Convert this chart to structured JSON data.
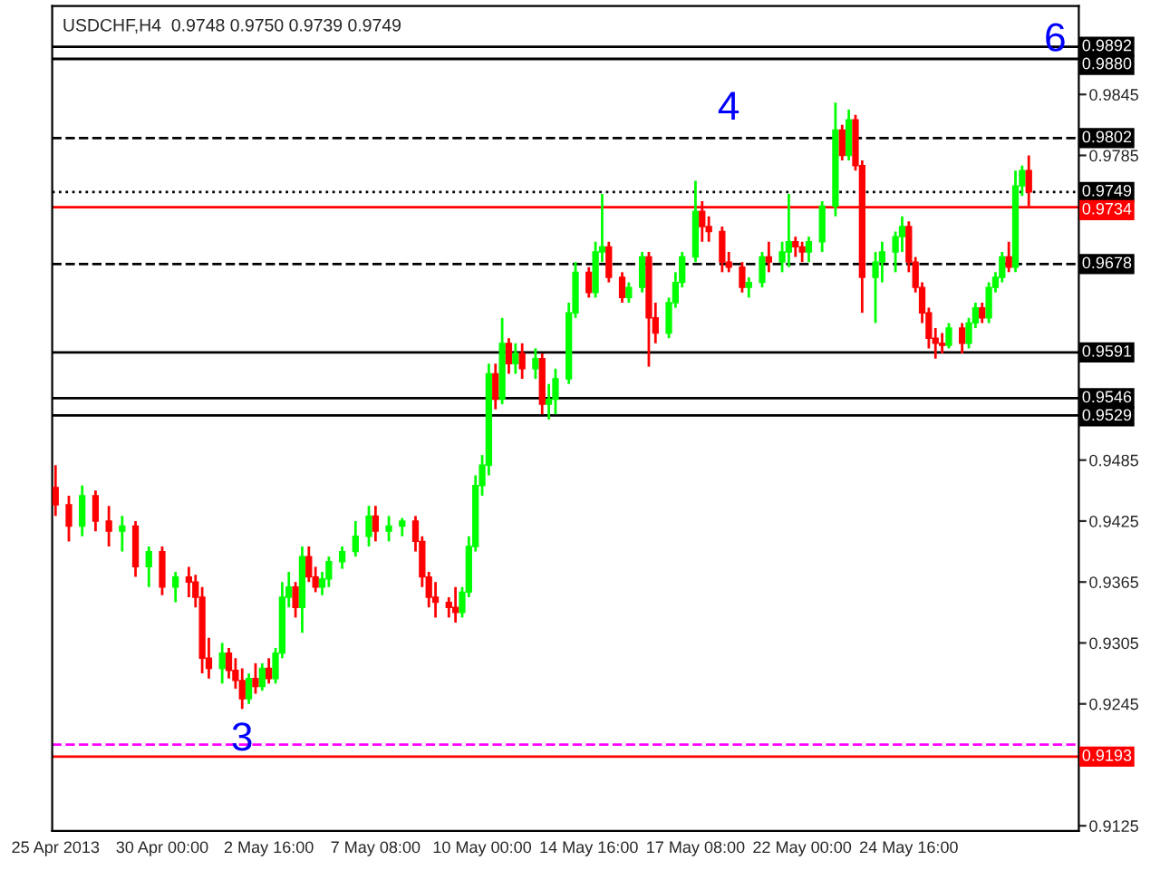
{
  "chart_data": {
    "type": "candlestick",
    "title": "USDCHF,H4  0.9748 0.9750 0.9739 0.9749",
    "categories": [
      "25 Apr 2013",
      null,
      null,
      null,
      null,
      null,
      null,
      null,
      null,
      null,
      null,
      null,
      null,
      null,
      null,
      null,
      "30 Apr 00:00",
      null,
      null,
      null,
      null,
      null,
      null,
      null,
      null,
      null,
      null,
      null,
      null,
      null,
      null,
      null,
      "2 May 16:00",
      null,
      null,
      null,
      null,
      null,
      null,
      null,
      null,
      null,
      null,
      null,
      null,
      null,
      null,
      null,
      "7 May 08:00",
      null,
      null,
      null,
      null,
      null,
      null,
      null,
      null,
      null,
      null,
      null,
      null,
      null,
      null,
      null,
      "10 May 00:00",
      null,
      null,
      null,
      null,
      null,
      null,
      null,
      null,
      null,
      null,
      null,
      null,
      null,
      null,
      null,
      "14 May 16:00",
      null,
      null,
      null,
      null,
      null,
      null,
      null,
      null,
      null,
      null,
      null,
      null,
      null,
      null,
      null,
      "17 May 08:00",
      null,
      null,
      null,
      null,
      null,
      null,
      null,
      null,
      null,
      null,
      null,
      null,
      null,
      null,
      null,
      "22 May 00:00",
      null,
      null,
      null,
      null,
      null,
      null,
      null,
      null,
      null,
      null,
      null,
      null,
      null,
      null,
      null,
      "24 May 16:00",
      null,
      null,
      null,
      null,
      null,
      null,
      null,
      null,
      null,
      null,
      null,
      null,
      null,
      null,
      null,
      null,
      null,
      null
    ],
    "ohlc": [
      [
        0.9458,
        0.948,
        0.943,
        0.9441
      ],
      null,
      [
        0.9441,
        0.945,
        0.9405,
        0.942
      ],
      null,
      [
        0.942,
        0.946,
        0.941,
        0.945
      ],
      null,
      [
        0.945,
        0.9455,
        0.9415,
        0.9425
      ],
      null,
      [
        0.9425,
        0.944,
        0.94,
        0.9415
      ],
      null,
      [
        0.9415,
        0.943,
        0.9395,
        0.942
      ],
      null,
      [
        0.942,
        0.9425,
        0.937,
        0.938
      ],
      null,
      [
        0.938,
        0.94,
        0.936,
        0.9395
      ],
      null,
      [
        0.9395,
        0.94,
        0.9352,
        0.936
      ],
      null,
      [
        0.936,
        0.9375,
        0.9345,
        0.937
      ],
      null,
      [
        0.937,
        0.938,
        0.935,
        0.9365
      ],
      [
        0.9365,
        0.9372,
        0.934,
        0.935
      ],
      [
        0.935,
        0.936,
        0.9275,
        0.929
      ],
      [
        0.929,
        0.931,
        0.927,
        0.928
      ],
      null,
      [
        0.928,
        0.9305,
        0.9265,
        0.9295
      ],
      [
        0.9295,
        0.93,
        0.927,
        0.9278
      ],
      [
        0.9278,
        0.929,
        0.926,
        0.9268
      ],
      [
        0.9268,
        0.928,
        0.924,
        0.925
      ],
      [
        0.925,
        0.9275,
        0.9245,
        0.927
      ],
      [
        0.927,
        0.9285,
        0.9255,
        0.9262
      ],
      [
        0.9262,
        0.9285,
        0.9258,
        0.928
      ],
      [
        0.928,
        0.929,
        0.9265,
        0.927
      ],
      [
        0.927,
        0.93,
        0.9265,
        0.9295
      ],
      [
        0.9295,
        0.9365,
        0.929,
        0.935
      ],
      [
        0.935,
        0.9375,
        0.934,
        0.936
      ],
      [
        0.936,
        0.9365,
        0.933,
        0.934
      ],
      [
        0.934,
        0.94,
        0.9315,
        0.939
      ],
      [
        0.939,
        0.94,
        0.9365,
        0.937
      ],
      [
        0.937,
        0.938,
        0.9355,
        0.936
      ],
      [
        0.936,
        0.9375,
        0.9352,
        0.9368
      ],
      [
        0.9368,
        0.939,
        0.936,
        0.9385
      ],
      null,
      [
        0.9385,
        0.94,
        0.9378,
        0.9395
      ],
      null,
      [
        0.9395,
        0.9425,
        0.939,
        0.941
      ],
      null,
      [
        0.941,
        0.944,
        0.94,
        0.943
      ],
      [
        0.943,
        0.944,
        0.9405,
        0.9415
      ],
      null,
      [
        0.9415,
        0.943,
        0.9405,
        0.942
      ],
      null,
      [
        0.942,
        0.9428,
        0.941,
        0.9425
      ],
      null,
      [
        0.9425,
        0.943,
        0.9395,
        0.9405
      ],
      [
        0.9405,
        0.941,
        0.936,
        0.937
      ],
      [
        0.937,
        0.9375,
        0.934,
        0.935
      ],
      [
        0.935,
        0.9365,
        0.933,
        0.9345
      ],
      null,
      [
        0.9345,
        0.935,
        0.933,
        0.934
      ],
      [
        0.934,
        0.936,
        0.9325,
        0.9335
      ],
      [
        0.9335,
        0.936,
        0.933,
        0.9355
      ],
      [
        0.9355,
        0.941,
        0.935,
        0.94
      ],
      [
        0.94,
        0.947,
        0.9395,
        0.946
      ],
      [
        0.946,
        0.949,
        0.945,
        0.948
      ],
      [
        0.948,
        0.958,
        0.947,
        0.957
      ],
      [
        0.957,
        0.958,
        0.9535,
        0.9545
      ],
      [
        0.9545,
        0.9625,
        0.954,
        0.96
      ],
      [
        0.96,
        0.9605,
        0.957,
        0.958
      ],
      [
        0.958,
        0.96,
        0.957,
        0.959
      ],
      [
        0.959,
        0.96,
        0.9565,
        0.9575
      ],
      null,
      [
        0.9575,
        0.9595,
        0.9565,
        0.9585
      ],
      [
        0.9585,
        0.959,
        0.953,
        0.954
      ],
      [
        0.954,
        0.956,
        0.9525,
        0.9545
      ],
      [
        0.9545,
        0.9575,
        0.953,
        0.9565
      ],
      null,
      [
        0.9565,
        0.964,
        0.956,
        0.963
      ],
      [
        0.963,
        0.968,
        0.9625,
        0.967
      ],
      null,
      [
        0.967,
        0.9675,
        0.9645,
        0.965
      ],
      [
        0.965,
        0.97,
        0.9645,
        0.969
      ],
      [
        0.969,
        0.9747,
        0.968,
        0.9695
      ],
      [
        0.9695,
        0.97,
        0.966,
        0.9665
      ],
      null,
      [
        0.9665,
        0.967,
        0.964,
        0.9645
      ],
      [
        0.9645,
        0.966,
        0.964,
        0.9655
      ],
      null,
      [
        0.9655,
        0.969,
        0.965,
        0.9685
      ],
      [
        0.9685,
        0.969,
        0.9577,
        0.9625
      ],
      [
        0.9625,
        0.964,
        0.96,
        0.961
      ],
      null,
      [
        0.961,
        0.9645,
        0.9605,
        0.964
      ],
      [
        0.964,
        0.967,
        0.9635,
        0.966
      ],
      [
        0.966,
        0.969,
        0.9655,
        0.9685
      ],
      null,
      [
        0.9685,
        0.976,
        0.968,
        0.973
      ],
      [
        0.973,
        0.974,
        0.97,
        0.9715
      ],
      [
        0.9715,
        0.9725,
        0.97,
        0.971
      ],
      null,
      [
        0.971,
        0.9715,
        0.967,
        0.968
      ],
      [
        0.968,
        0.969,
        0.967,
        0.9675
      ],
      null,
      [
        0.9675,
        0.968,
        0.965,
        0.9655
      ],
      [
        0.9655,
        0.9665,
        0.9645,
        0.966
      ],
      null,
      [
        0.966,
        0.969,
        0.9655,
        0.9685
      ],
      [
        0.9685,
        0.97,
        0.967,
        0.968
      ],
      null,
      [
        0.968,
        0.97,
        0.967,
        0.969
      ],
      [
        0.969,
        0.9747,
        0.9675,
        0.97
      ],
      [
        0.97,
        0.9705,
        0.9685,
        0.9695
      ],
      [
        0.9695,
        0.97,
        0.968,
        0.969
      ],
      [
        0.969,
        0.9705,
        0.968,
        0.97
      ],
      null,
      [
        0.97,
        0.974,
        0.969,
        0.9735
      ],
      null,
      [
        0.9735,
        0.9837,
        0.9725,
        0.981
      ],
      [
        0.981,
        0.9815,
        0.978,
        0.9785
      ],
      [
        0.9785,
        0.983,
        0.978,
        0.982
      ],
      [
        0.982,
        0.9825,
        0.977,
        0.9775
      ],
      [
        0.9775,
        0.978,
        0.963,
        0.9665
      ],
      null,
      [
        0.9665,
        0.969,
        0.962,
        0.968
      ],
      [
        0.968,
        0.97,
        0.966,
        0.969
      ],
      null,
      [
        0.969,
        0.971,
        0.967,
        0.9705
      ],
      [
        0.9705,
        0.9725,
        0.969,
        0.9715
      ],
      [
        0.9715,
        0.972,
        0.967,
        0.968
      ],
      [
        0.968,
        0.9685,
        0.965,
        0.9655
      ],
      [
        0.9655,
        0.966,
        0.962,
        0.963
      ],
      [
        0.963,
        0.9635,
        0.9595,
        0.9605
      ],
      [
        0.9605,
        0.9615,
        0.9585,
        0.96
      ],
      [
        0.96,
        0.961,
        0.959,
        0.9598
      ],
      [
        0.9598,
        0.962,
        0.9595,
        0.9615
      ],
      null,
      [
        0.9615,
        0.962,
        0.959,
        0.96
      ],
      [
        0.96,
        0.9625,
        0.9595,
        0.962
      ],
      [
        0.962,
        0.964,
        0.9615,
        0.9635
      ],
      [
        0.9635,
        0.964,
        0.962,
        0.9625
      ],
      [
        0.9625,
        0.966,
        0.962,
        0.9655
      ],
      [
        0.9655,
        0.967,
        0.965,
        0.9665
      ],
      [
        0.9665,
        0.969,
        0.966,
        0.9685
      ],
      [
        0.9685,
        0.97,
        0.967,
        0.9675
      ],
      [
        0.9675,
        0.977,
        0.967,
        0.9755
      ],
      [
        0.9755,
        0.9775,
        0.9745,
        0.977
      ],
      [
        0.977,
        0.9785,
        0.9735,
        0.9749
      ]
    ],
    "colors": [
      "#ff0000",
      null,
      "#ff0000",
      null,
      "#00ff00",
      null,
      "#ff0000",
      null,
      "#ff0000",
      null,
      "#00ff00",
      null,
      "#ff0000",
      null,
      "#00ff00",
      null,
      "#ff0000",
      null,
      "#00ff00",
      null,
      "#ff0000",
      "#ff0000",
      "#ff0000",
      "#ff0000",
      null,
      "#00ff00",
      "#ff0000",
      "#ff0000",
      "#ff0000",
      "#00ff00",
      "#ff0000",
      "#00ff00",
      "#ff0000",
      "#00ff00",
      "#00ff00",
      "#00ff00",
      "#ff0000",
      "#00ff00",
      "#ff0000",
      "#ff0000",
      "#00ff00",
      "#00ff00",
      null,
      "#00ff00",
      null,
      "#00ff00",
      null,
      "#00ff00",
      "#ff0000",
      null,
      "#00ff00",
      null,
      "#00ff00",
      null,
      "#ff0000",
      "#ff0000",
      "#ff0000",
      "#ff0000",
      null,
      "#ff0000",
      "#ff0000",
      "#00ff00",
      "#00ff00",
      "#00ff00",
      "#00ff00",
      "#00ff00",
      "#ff0000",
      "#00ff00",
      "#ff0000",
      "#00ff00",
      "#ff0000",
      null,
      "#00ff00",
      "#ff0000",
      "#00ff00",
      "#00ff00",
      null,
      "#00ff00",
      "#00ff00",
      null,
      "#ff0000",
      "#00ff00",
      "#00ff00",
      "#ff0000",
      null,
      "#ff0000",
      "#00ff00",
      null,
      "#00ff00",
      "#ff0000",
      "#ff0000",
      null,
      "#00ff00",
      "#00ff00",
      "#00ff00",
      null,
      "#00ff00",
      "#ff0000",
      "#ff0000",
      null,
      "#ff0000",
      "#ff0000",
      null,
      "#ff0000",
      "#00ff00",
      null,
      "#00ff00",
      "#ff0000",
      null,
      "#00ff00",
      "#00ff00",
      "#ff0000",
      "#ff0000",
      "#00ff00",
      null,
      "#00ff00",
      null,
      "#00ff00",
      "#ff0000",
      "#00ff00",
      "#ff0000",
      "#ff0000",
      null,
      "#00ff00",
      "#00ff00",
      null,
      "#00ff00",
      "#00ff00",
      "#ff0000",
      "#ff0000",
      "#ff0000",
      "#ff0000",
      "#ff0000",
      "#ff0000",
      "#00ff00",
      null,
      "#ff0000",
      "#00ff00",
      "#00ff00",
      "#ff0000",
      "#00ff00",
      "#00ff00",
      "#00ff00",
      "#ff0000",
      "#00ff00",
      "#00ff00",
      "#ff0000"
    ],
    "ref_lines": [
      {
        "axis": "y",
        "value": 0.9892,
        "label": "0.9892",
        "color": "#000000"
      },
      {
        "axis": "y",
        "value": 0.988,
        "label": "0.9880",
        "color": "#000000"
      },
      {
        "axis": "y",
        "value": 0.9802,
        "label": "0.9802",
        "color": "#000000",
        "line_style": "dashed"
      },
      {
        "axis": "y",
        "value": 0.9749,
        "label": "0.9749",
        "color": "#000000",
        "line_style": "dotted"
      },
      {
        "axis": "y",
        "value": 0.9734,
        "label": "0.9734",
        "color": "#ff0000"
      },
      {
        "axis": "y",
        "value": 0.9678,
        "label": "0.9678",
        "color": "#000000",
        "line_style": "dashed"
      },
      {
        "axis": "y",
        "value": 0.9591,
        "label": "0.9591",
        "color": "#000000"
      },
      {
        "axis": "y",
        "value": 0.9546,
        "label": "0.9546",
        "color": "#000000"
      },
      {
        "axis": "y",
        "value": 0.9529,
        "label": "0.9529",
        "color": "#000000"
      },
      {
        "axis": "y",
        "value": 0.9205,
        "label": null,
        "color": "#ff00ff",
        "line_style": "dashed"
      },
      {
        "axis": "y",
        "value": 0.9193,
        "label": "0.9193",
        "color": "#ff0000"
      }
    ],
    "annotations": [
      "3",
      "4",
      "6"
    ],
    "ylim": [
      0.912,
      0.9932
    ],
    "yticks": [
      0.9845,
      0.9785,
      0.9485,
      0.9425,
      0.9365,
      0.9305,
      0.9245,
      0.9125
    ],
    "grid": false
  }
}
